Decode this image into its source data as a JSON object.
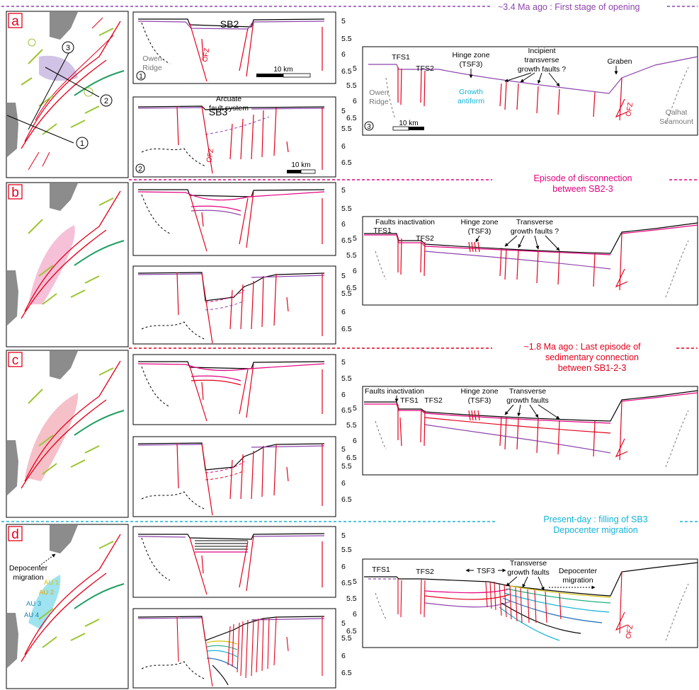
{
  "colors": {
    "stage_a": "#8e44ad",
    "stage_b": "#e6007e",
    "stage_c": "#e3001b",
    "stage_d": "#12b3d6",
    "fault": "#e3001b",
    "map_land": "#8c8c8c",
    "map_green": "#9bc531",
    "map_deepgreen": "#1e9e60"
  },
  "stages": [
    {
      "letter": "a",
      "banner": "~3.4 Ma ago : First stage of opening"
    },
    {
      "letter": "b",
      "banner_line1": "Episode of disconnection",
      "banner_line2": "between SB2-3"
    },
    {
      "letter": "c",
      "banner_line1": "~1.8 Ma ago : Last episode of",
      "banner_line2": "sedimentary connection",
      "banner_line3": "between SB1-2-3"
    },
    {
      "letter": "d",
      "banner_line1": "Present-day : filling of SB3",
      "banner_line2": "Depocenter migration"
    }
  ],
  "map_a": {
    "profile_1": "1",
    "profile_2": "2",
    "profile_3": "3"
  },
  "map_d": {
    "depocenter_line1": "Depocenter",
    "depocenter_line2": "migration",
    "au1": "AU 1",
    "au2": "AU 2",
    "au3": "AU 3",
    "au4": "AU 4"
  },
  "depth_ticks": [
    "5",
    "5.5",
    "6",
    "6.5"
  ],
  "sb2": {
    "title": "SB2",
    "owen_line1": "Owen",
    "owen_line2": "Ridge",
    "ofz": "OFZ",
    "scale": "10 km",
    "marker": "1"
  },
  "sb3": {
    "title": "SB3",
    "arcuate_line1": "Arcuate",
    "arcuate_line2": "fault system",
    "ofz": "OFZ",
    "scale": "10 km",
    "marker": "2"
  },
  "long_a": {
    "tfs1": "TFS1",
    "tfs2": "TFS2",
    "hinge_line1": "Hinge zone",
    "hinge_line2": "(TSF3)",
    "incipient_line1": "Incipient",
    "incipient_line2": "transverse",
    "incipient_line3": "growth faults ?",
    "graben": "Graben",
    "growth_line1": "Growth",
    "growth_line2": "antiform",
    "owen_line1": "Owen",
    "owen_line2": "Ridge",
    "qalhat_line1": "Qalhat",
    "qalhat_line2": "Seamount",
    "ofz": "OFZ",
    "scale": "10 km",
    "marker": "3"
  },
  "long_b": {
    "faults_inactivation": "Faults inactivation",
    "tfs1": "TFS1",
    "tfs2": "TFS2",
    "hinge_line1": "Hinge zone",
    "hinge_line2": "(TSF3)",
    "transverse_line1": "Transverse",
    "transverse_line2": "growth faults ?"
  },
  "long_c": {
    "faults_inactivation": "Faults inactivation",
    "tfs1": "TFS1",
    "tfs2": "TFS2",
    "hinge_line1": "Hinge zone",
    "hinge_line2": "(TSF3)",
    "transverse_line1": "Transverse",
    "transverse_line2": "growth faults"
  },
  "long_d": {
    "tfs1": "TFS1",
    "tfs2": "TFS2",
    "tsf3": "TSF3",
    "transverse_line1": "Transverse",
    "transverse_line2": "growth faults",
    "depocenter_line1": "Depocenter",
    "depocenter_line2": "migration",
    "ofz": "OFZ"
  }
}
